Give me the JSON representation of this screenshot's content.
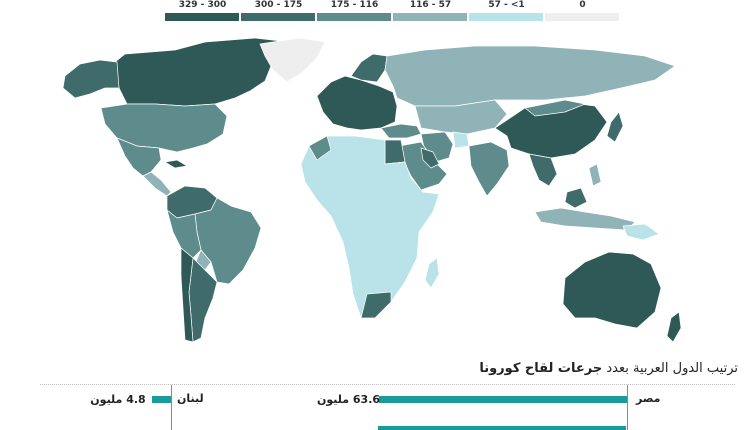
{
  "legend": {
    "items": [
      {
        "label": "329 - 300",
        "color": "#2f5957"
      },
      {
        "label": "300 - 175",
        "color": "#3f6b6b"
      },
      {
        "label": "175 - 116",
        "color": "#5e8b8c"
      },
      {
        "label": "116 - 57",
        "color": "#8fb3b6"
      },
      {
        "label": "57 - <1",
        "color": "#b9e3e8"
      },
      {
        "label": "0",
        "color": "#eeeeee"
      }
    ]
  },
  "map": {
    "ocean_color": "#ffffff",
    "border_color": "#ffffff"
  },
  "ranking": {
    "title_prefix": "ترتيب الدول العربية بعدد",
    "title_highlight": "جرعات لقاح كورونا",
    "bar_color": "#1b9a9c",
    "rows": [
      {
        "country": "مصر",
        "value_label": "63.6 مليون",
        "value": 63.6
      },
      {
        "country": "لبنان",
        "value_label": "4.8 مليون",
        "value": 4.8
      }
    ]
  }
}
